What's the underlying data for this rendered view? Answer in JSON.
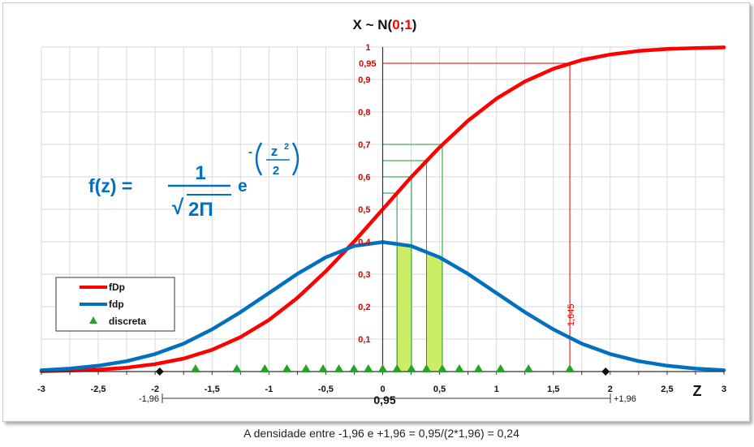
{
  "chart_data": {
    "type": "line",
    "title_parts": [
      "X ~ N(",
      "0",
      ";",
      "1",
      ")"
    ],
    "xlabel": "Z",
    "xlim": [
      -3,
      3
    ],
    "ylim": [
      0,
      1
    ],
    "x_ticks": [
      -3,
      -2.5,
      -2,
      -1.5,
      -1,
      -0.5,
      0,
      0.5,
      1,
      1.5,
      2,
      2.5,
      3
    ],
    "x_tick_labels": [
      "-3",
      "-2,5",
      "-2",
      "-1,5",
      "-1",
      "-0,5",
      "0",
      "0,5",
      "1",
      "1,5",
      "2",
      "2,5",
      "3"
    ],
    "y_ticks": [
      0.1,
      0.2,
      0.3,
      0.4,
      0.5,
      0.6,
      0.7,
      0.8,
      0.9,
      1
    ],
    "y_tick_labels": [
      "0,1",
      "0,2",
      "0,3",
      "0,4",
      "0,5",
      "0,6",
      "0,7",
      "0,8",
      "0,9",
      "1"
    ],
    "y_extra_label": {
      "value": 0.95,
      "text": "0,95"
    },
    "series": [
      {
        "name": "fDp",
        "color": "#ff0000",
        "x": [
          -3,
          -2.75,
          -2.5,
          -2.25,
          -2,
          -1.75,
          -1.5,
          -1.25,
          -1,
          -0.75,
          -0.5,
          -0.25,
          0,
          0.25,
          0.5,
          0.75,
          1,
          1.25,
          1.5,
          1.75,
          2,
          2.25,
          2.5,
          2.75,
          3
        ],
        "y": [
          0.001,
          0.003,
          0.006,
          0.012,
          0.023,
          0.04,
          0.067,
          0.106,
          0.159,
          0.227,
          0.309,
          0.401,
          0.5,
          0.599,
          0.691,
          0.773,
          0.841,
          0.894,
          0.933,
          0.96,
          0.977,
          0.988,
          0.994,
          0.997,
          0.999
        ]
      },
      {
        "name": "fdp",
        "color": "#0070c0",
        "x": [
          -3,
          -2.75,
          -2.5,
          -2.25,
          -2,
          -1.75,
          -1.5,
          -1.25,
          -1,
          -0.75,
          -0.5,
          -0.25,
          0,
          0.25,
          0.5,
          0.75,
          1,
          1.25,
          1.5,
          1.75,
          2,
          2.25,
          2.5,
          2.75,
          3
        ],
        "y": [
          0.004,
          0.009,
          0.018,
          0.032,
          0.054,
          0.086,
          0.13,
          0.183,
          0.242,
          0.301,
          0.352,
          0.387,
          0.399,
          0.387,
          0.352,
          0.301,
          0.242,
          0.183,
          0.13,
          0.086,
          0.054,
          0.032,
          0.018,
          0.009,
          0.004
        ]
      },
      {
        "name": "discreta",
        "color": "#2ca02c",
        "marker": "triangle",
        "x": [
          -1.645,
          -1.282,
          -1.036,
          -0.842,
          -0.674,
          -0.524,
          -0.385,
          -0.253,
          -0.126,
          0,
          0.126,
          0.253,
          0.385,
          0.524,
          0.674,
          0.842,
          1.036,
          1.282,
          1.645
        ],
        "y": [
          0,
          0,
          0,
          0,
          0,
          0,
          0,
          0,
          0,
          0,
          0,
          0,
          0,
          0,
          0,
          0,
          0,
          0,
          0
        ]
      }
    ],
    "diamond_markers": [
      -1.96,
      1.96
    ],
    "highlight_bands": [
      {
        "x0": 0.126,
        "x1": 0.253,
        "color": "#ccee66"
      },
      {
        "x0": 0.385,
        "x1": 0.524,
        "color": "#ccee66"
      }
    ],
    "green_guides": [
      0.126,
      0.253,
      0.385,
      0.524
    ],
    "red_guide": {
      "x": 1.645,
      "y": 0.95,
      "label": "1,645"
    },
    "interval": {
      "left_label": "-1,96",
      "center_label": "0,95",
      "right_label": "+1,96"
    },
    "formula": {
      "lhs": "f(z) =",
      "numerator": "1",
      "radical": "√",
      "radicand": "2Π",
      "base": "e",
      "minus": "-",
      "exp_z": "z",
      "exp_pow": "2",
      "exp_den": "2"
    },
    "legend_position": "left",
    "grid": true
  },
  "caption": "A densidade entre -1,96 e +1,96 = 0,95/(2*1,96) = 0,24",
  "colors": {
    "fDp": "#ff0000",
    "fdp": "#0070c0",
    "discreta": "#2ca02c",
    "band": "#ccee66",
    "guide_green": "#1a9a3a",
    "guide_red": "#dd0000",
    "grid": "#d9d9d9",
    "title_accent": "#ff0000"
  }
}
